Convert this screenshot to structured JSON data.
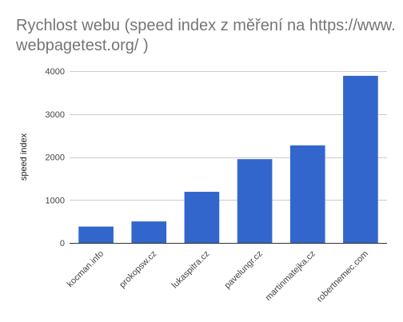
{
  "chart_data": {
    "type": "bar",
    "title_lines": [
      "Rychlost webu (speed index z měření na https://www.",
      "webpagetest.org/ )"
    ],
    "xlabel": "",
    "ylabel": "speed index",
    "categories": [
      "kocman.info",
      "prokopsw.cz",
      "lukaspitra.cz",
      "pavelungr.cz",
      "martinmatejka.cz",
      "robertnemec.com"
    ],
    "values": [
      380,
      500,
      1190,
      1950,
      2270,
      3890
    ],
    "ylim": [
      0,
      4000
    ],
    "yticks": [
      0,
      1000,
      2000,
      3000,
      4000
    ],
    "grid": true,
    "legend": "none",
    "bar_color": "#3366cc",
    "grid_color": "#cccccc",
    "baseline_color": "#333333"
  }
}
